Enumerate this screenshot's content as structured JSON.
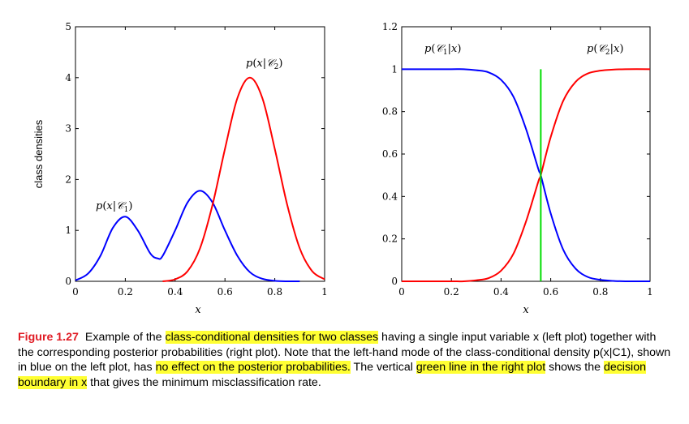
{
  "chart_data": [
    {
      "type": "line",
      "title": "",
      "xlabel": "x",
      "ylabel": "class densities",
      "xlim": [
        0,
        1
      ],
      "ylim": [
        0,
        5
      ],
      "xticks": [
        "0",
        "0.2",
        "0.4",
        "0.6",
        "0.8",
        "1"
      ],
      "yticks": [
        "0",
        "1",
        "2",
        "3",
        "4",
        "5"
      ],
      "series": [
        {
          "name": "p(x|C1)",
          "color": "#0000ff",
          "x": [
            0,
            0.05,
            0.1,
            0.15,
            0.2,
            0.25,
            0.3,
            0.33,
            0.35,
            0.4,
            0.45,
            0.5,
            0.55,
            0.6,
            0.65,
            0.7,
            0.75,
            0.8,
            0.85,
            0.9
          ],
          "y": [
            0.02,
            0.15,
            0.5,
            1.05,
            1.27,
            1.0,
            0.55,
            0.45,
            0.5,
            1.0,
            1.55,
            1.78,
            1.55,
            1.0,
            0.5,
            0.18,
            0.05,
            0.01,
            0.0,
            0.0
          ]
        },
        {
          "name": "p(x|C2)",
          "color": "#ff0000",
          "x": [
            0.35,
            0.4,
            0.45,
            0.5,
            0.55,
            0.6,
            0.65,
            0.7,
            0.75,
            0.8,
            0.85,
            0.9,
            0.95,
            1.0
          ],
          "y": [
            0.0,
            0.04,
            0.2,
            0.65,
            1.5,
            2.6,
            3.6,
            4.0,
            3.6,
            2.6,
            1.5,
            0.65,
            0.2,
            0.04
          ]
        }
      ],
      "annotations": [
        "p(x|C1)",
        "p(x|C2)"
      ]
    },
    {
      "type": "line",
      "title": "",
      "xlabel": "x",
      "ylabel": "",
      "xlim": [
        0,
        1
      ],
      "ylim": [
        0,
        1.2
      ],
      "xticks": [
        "0",
        "0.2",
        "0.4",
        "0.6",
        "0.8",
        "1"
      ],
      "yticks": [
        "0",
        "0.2",
        "0.4",
        "0.6",
        "0.8",
        "1",
        "1.2"
      ],
      "series": [
        {
          "name": "p(C1|x)",
          "color": "#0000ff",
          "x": [
            0,
            0.1,
            0.2,
            0.25,
            0.3,
            0.35,
            0.4,
            0.45,
            0.5,
            0.55,
            0.56,
            0.6,
            0.65,
            0.7,
            0.75,
            0.8,
            0.85,
            0.9,
            1.0
          ],
          "y": [
            1.0,
            1.0,
            1.0,
            1.0,
            0.995,
            0.985,
            0.95,
            0.87,
            0.72,
            0.53,
            0.5,
            0.32,
            0.15,
            0.06,
            0.02,
            0.007,
            0.002,
            0.0,
            0.0
          ]
        },
        {
          "name": "p(C2|x)",
          "color": "#ff0000",
          "x": [
            0,
            0.1,
            0.2,
            0.25,
            0.3,
            0.35,
            0.4,
            0.45,
            0.5,
            0.55,
            0.56,
            0.6,
            0.65,
            0.7,
            0.75,
            0.8,
            0.85,
            0.9,
            1.0
          ],
          "y": [
            0.0,
            0.0,
            0.0,
            0.0,
            0.005,
            0.015,
            0.05,
            0.13,
            0.28,
            0.47,
            0.5,
            0.68,
            0.85,
            0.94,
            0.98,
            0.993,
            0.998,
            1.0,
            1.0
          ]
        }
      ],
      "decision_boundary": {
        "x": 0.56,
        "color": "#00dd00"
      },
      "annotations": [
        "p(C1|x)",
        "p(C2|x)"
      ]
    }
  ],
  "caption": {
    "figure_number": "Figure 1.27",
    "segments": [
      {
        "text": "Example of the ",
        "highlight": false
      },
      {
        "text": "class-conditional densities for two classes",
        "highlight": true
      },
      {
        "text": " having a single input variable x (left plot) together with the corresponding posterior probabilities (right plot). Note that the left-hand mode of the class-conditional density p(x|C1), shown in blue on the left plot, has ",
        "highlight": false
      },
      {
        "text": "no effect on the posterior probabilities.",
        "highlight": true
      },
      {
        "text": " The vertical ",
        "highlight": false
      },
      {
        "text": "green line in the right plot",
        "highlight": true
      },
      {
        "text": " shows the ",
        "highlight": false
      },
      {
        "text": "decision boundary in x",
        "highlight": true
      },
      {
        "text": " that gives the minimum misclassification rate.",
        "highlight": false
      }
    ]
  }
}
